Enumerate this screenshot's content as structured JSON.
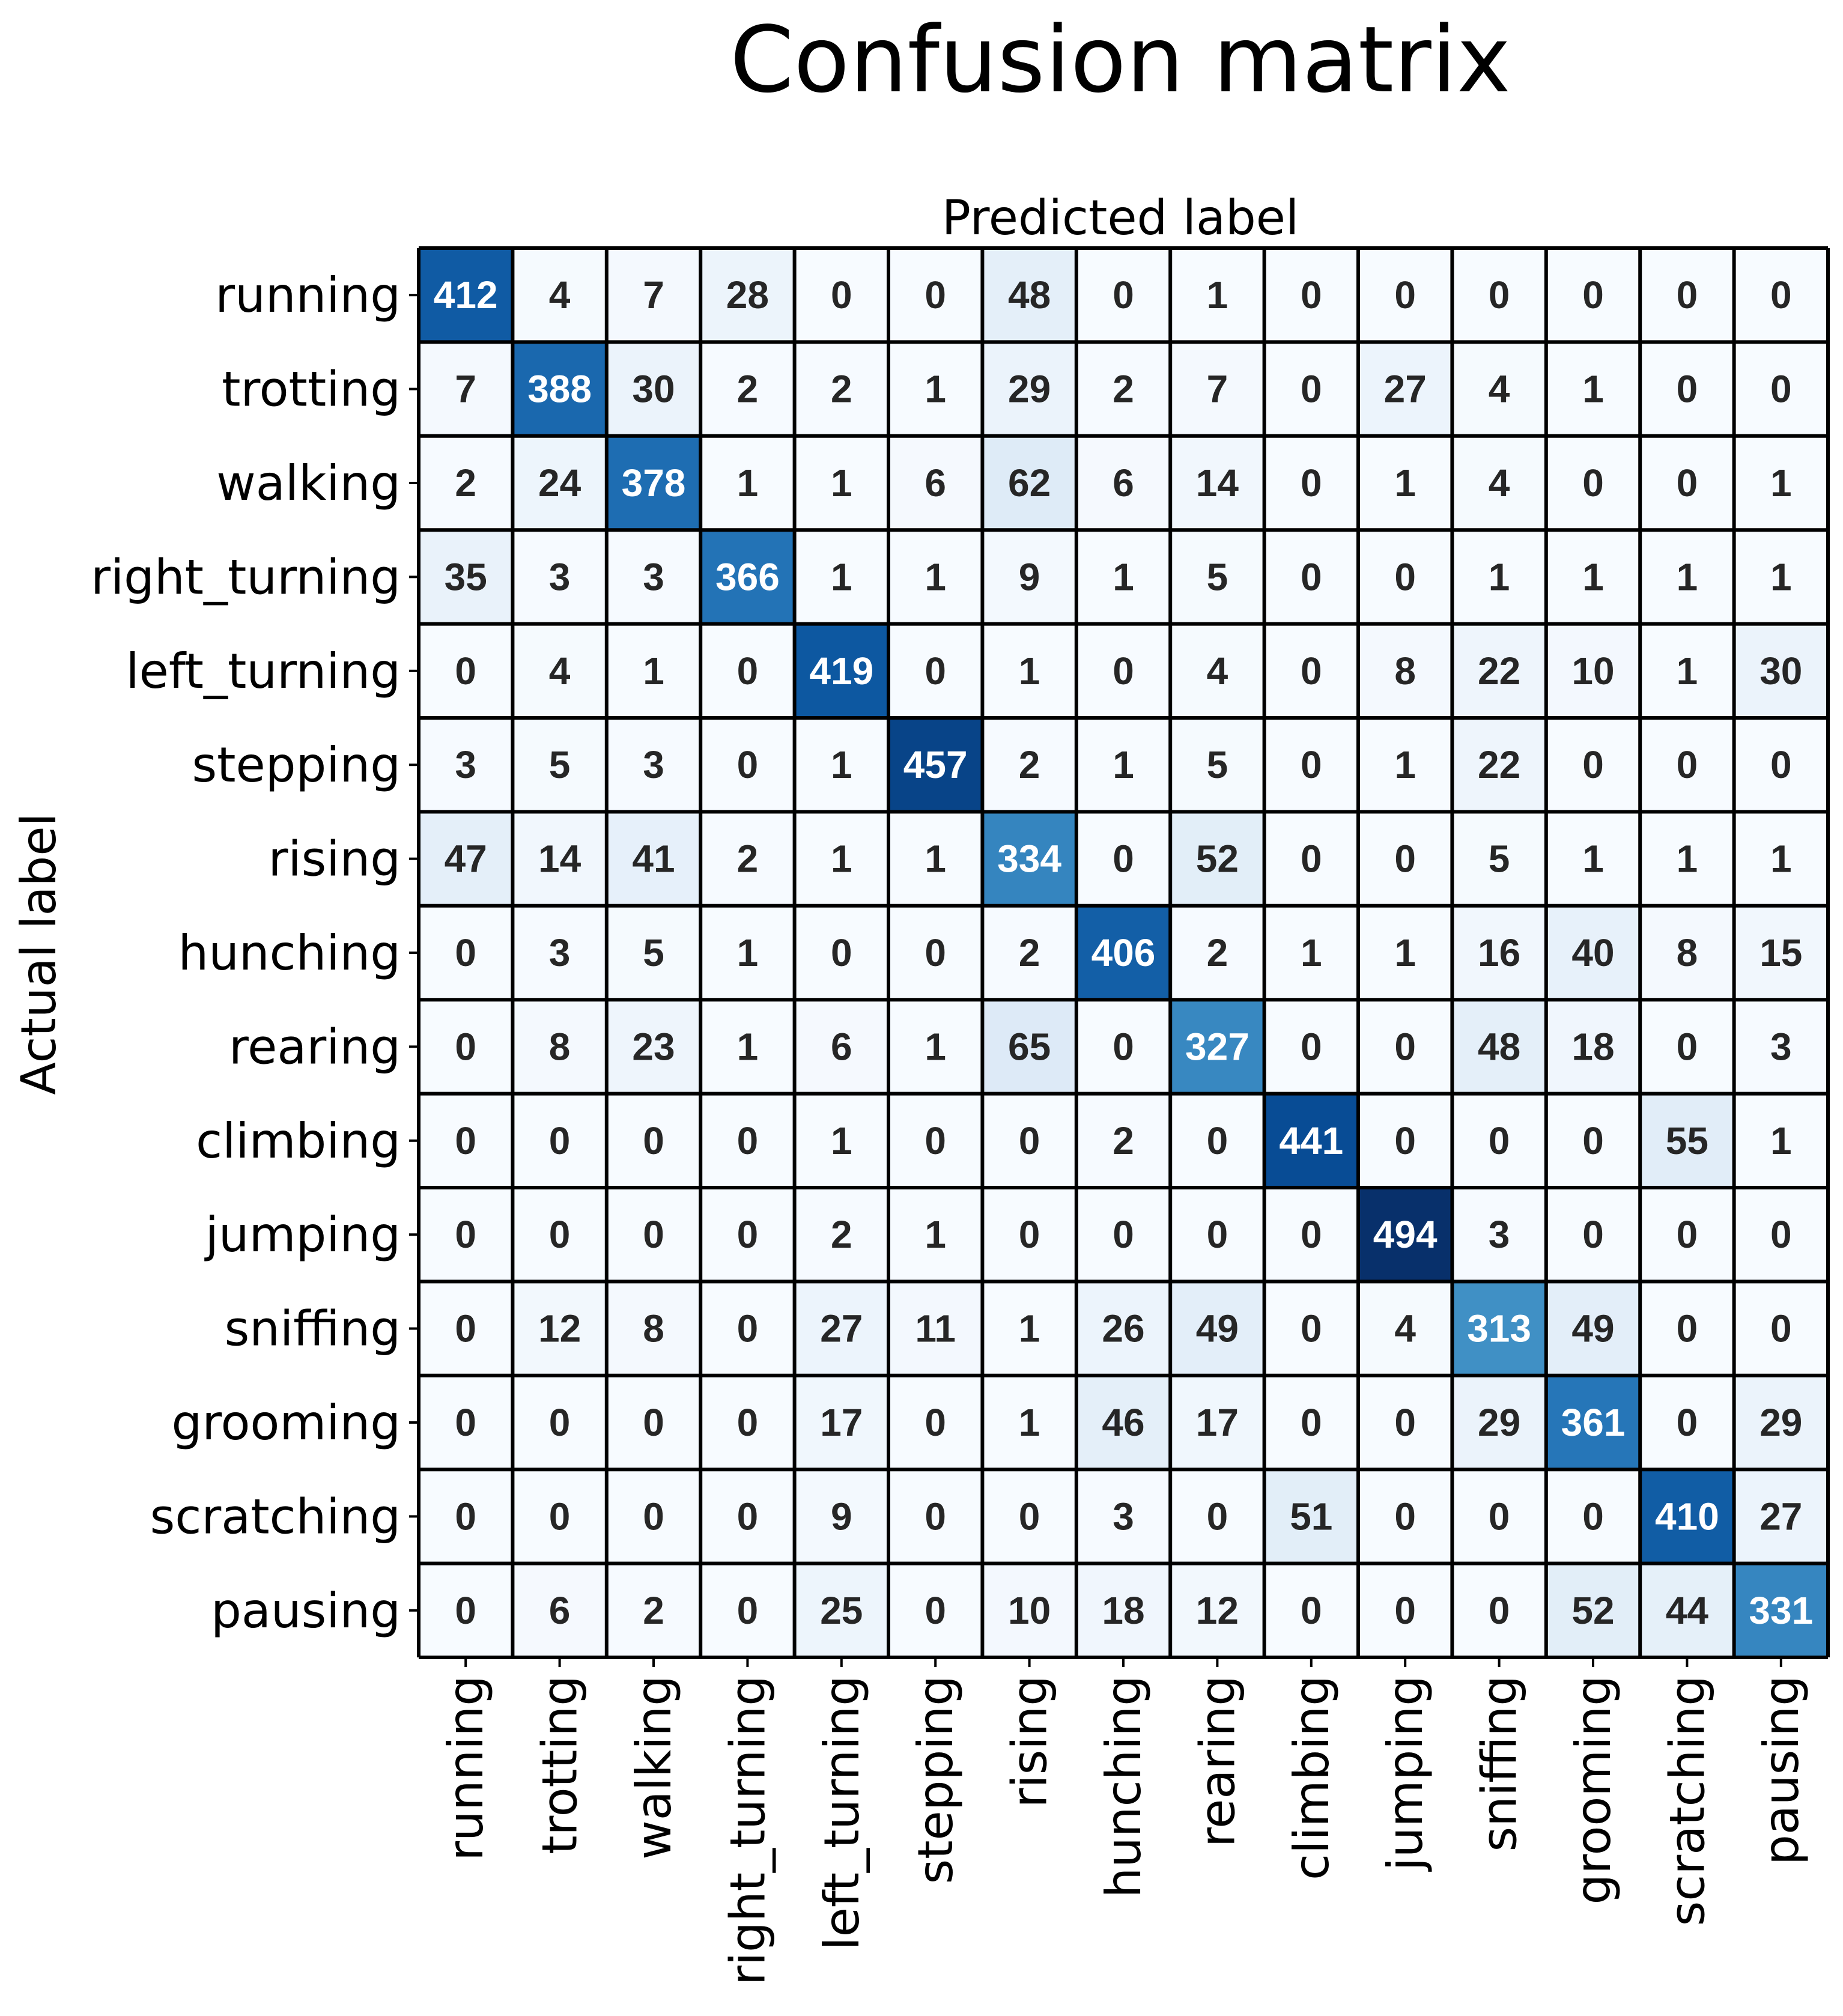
{
  "chart_data": {
    "type": "heatmap",
    "title": "Confusion matrix",
    "xlabel": "Predicted label",
    "ylabel": "Actual label",
    "colormap": "Blues",
    "value_range": [
      0,
      494
    ],
    "x_labels": [
      "running",
      "trotting",
      "walking",
      "right_turning",
      "left_turning",
      "stepping",
      "rising",
      "hunching",
      "rearing",
      "climbing",
      "jumping",
      "sniffing",
      "grooming",
      "scratching",
      "pausing"
    ],
    "y_labels": [
      "running",
      "trotting",
      "walking",
      "right_turning",
      "left_turning",
      "stepping",
      "rising",
      "hunching",
      "rearing",
      "climbing",
      "jumping",
      "sniffing",
      "grooming",
      "scratching",
      "pausing"
    ],
    "matrix": [
      [
        412,
        4,
        7,
        28,
        0,
        0,
        48,
        0,
        1,
        0,
        0,
        0,
        0,
        0,
        0
      ],
      [
        7,
        388,
        30,
        2,
        2,
        1,
        29,
        2,
        7,
        0,
        27,
        4,
        1,
        0,
        0
      ],
      [
        2,
        24,
        378,
        1,
        1,
        6,
        62,
        6,
        14,
        0,
        1,
        4,
        0,
        0,
        1
      ],
      [
        35,
        3,
        3,
        366,
        1,
        1,
        9,
        1,
        5,
        0,
        0,
        1,
        1,
        1,
        1
      ],
      [
        0,
        4,
        1,
        0,
        419,
        0,
        1,
        0,
        4,
        0,
        8,
        22,
        10,
        1,
        30
      ],
      [
        3,
        5,
        3,
        0,
        1,
        457,
        2,
        1,
        5,
        0,
        1,
        22,
        0,
        0,
        0
      ],
      [
        47,
        14,
        41,
        2,
        1,
        1,
        334,
        0,
        52,
        0,
        0,
        5,
        1,
        1,
        1
      ],
      [
        0,
        3,
        5,
        1,
        0,
        0,
        2,
        406,
        2,
        1,
        1,
        16,
        40,
        8,
        15
      ],
      [
        0,
        8,
        23,
        1,
        6,
        1,
        65,
        0,
        327,
        0,
        0,
        48,
        18,
        0,
        3
      ],
      [
        0,
        0,
        0,
        0,
        1,
        0,
        0,
        2,
        0,
        441,
        0,
        0,
        0,
        55,
        1
      ],
      [
        0,
        0,
        0,
        0,
        2,
        1,
        0,
        0,
        0,
        0,
        494,
        3,
        0,
        0,
        0
      ],
      [
        0,
        12,
        8,
        0,
        27,
        11,
        1,
        26,
        49,
        0,
        4,
        313,
        49,
        0,
        0
      ],
      [
        0,
        0,
        0,
        0,
        17,
        0,
        1,
        46,
        17,
        0,
        0,
        29,
        361,
        0,
        29
      ],
      [
        0,
        0,
        0,
        0,
        9,
        0,
        0,
        3,
        0,
        51,
        0,
        0,
        0,
        410,
        27
      ],
      [
        0,
        6,
        2,
        0,
        25,
        0,
        10,
        18,
        12,
        0,
        0,
        0,
        52,
        44,
        331
      ]
    ],
    "grid": false,
    "legend": "none"
  }
}
